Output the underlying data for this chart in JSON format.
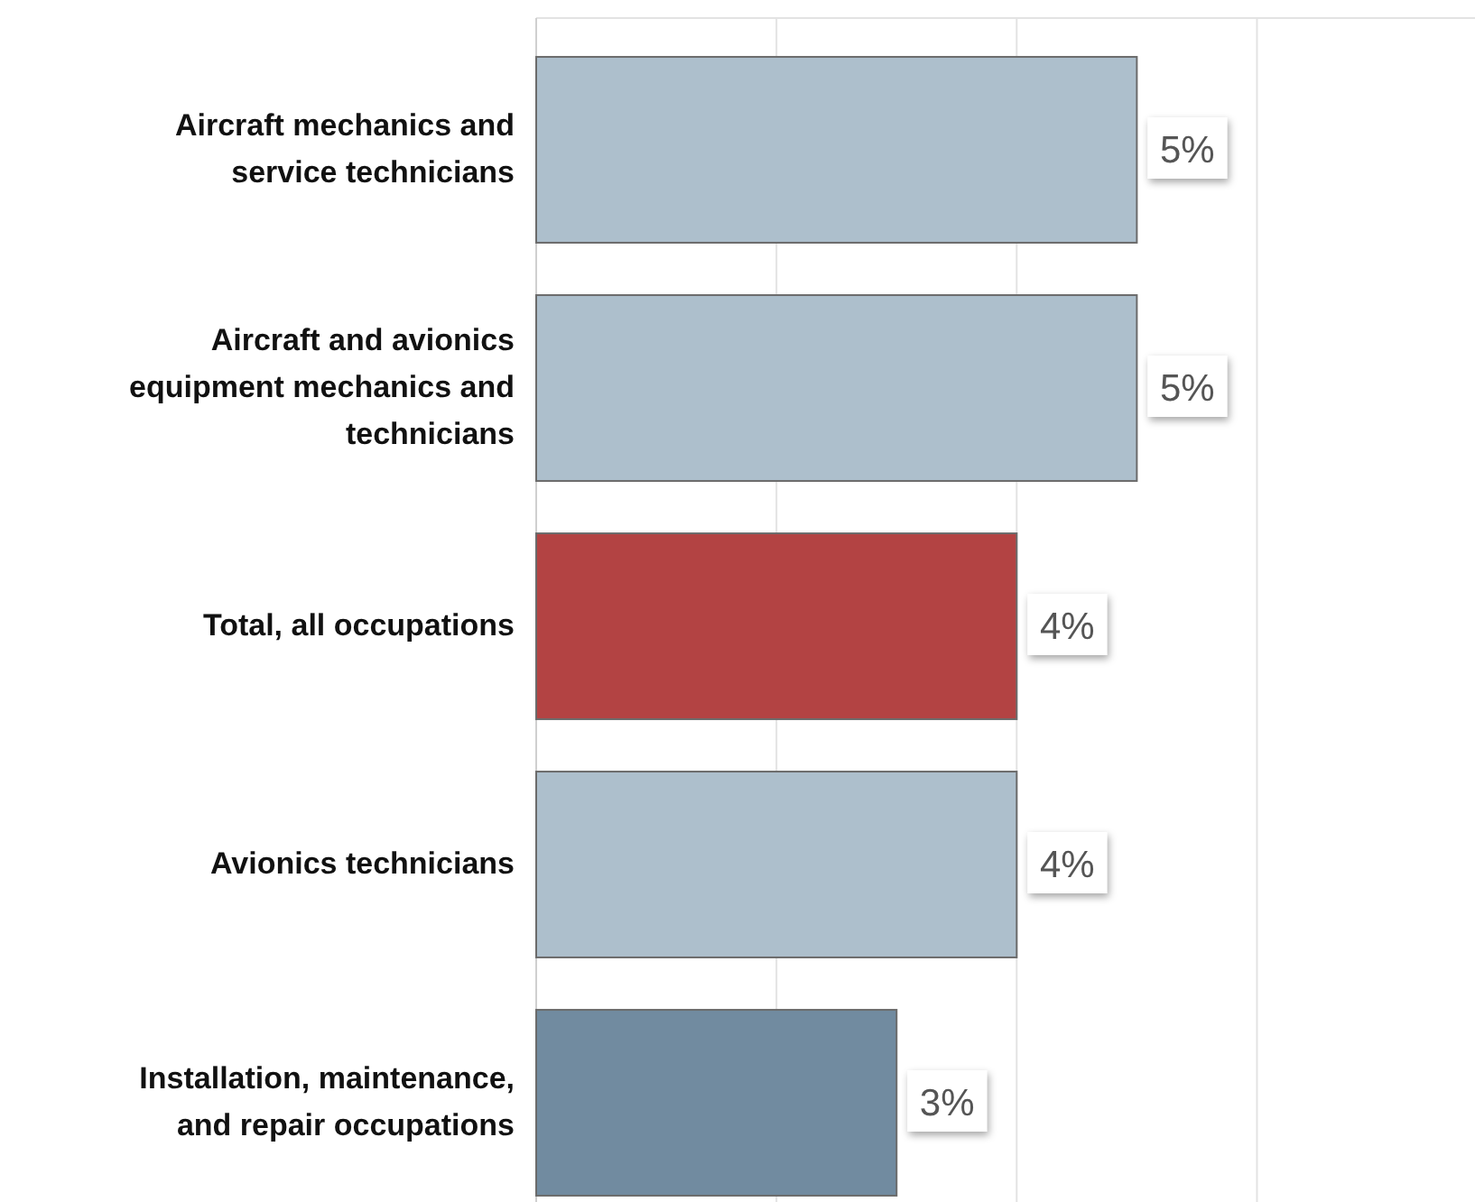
{
  "chart_data": {
    "type": "bar",
    "orientation": "horizontal",
    "categories": [
      "Aircraft mechanics and service technicians",
      "Aircraft and avionics equipment mechanics and technicians",
      "Total, all occupations",
      "Avionics technicians",
      "Installation, maintenance, and repair occupations"
    ],
    "values": [
      5,
      5,
      4,
      4,
      3
    ],
    "colors": [
      "#adbfcc",
      "#adbfcc",
      "#b34343",
      "#adbfcc",
      "#718ba0"
    ],
    "value_labels": [
      "5%",
      "5%",
      "4%",
      "4%",
      "3%"
    ],
    "xlim": [
      0,
      7.8
    ],
    "xticks": [
      {
        "value": 0,
        "label": null
      },
      {
        "value": 2,
        "label": null
      },
      {
        "value": 4,
        "label": null
      },
      {
        "value": 6,
        "label": null
      }
    ],
    "grid": "x",
    "tick_labels": "y"
  }
}
